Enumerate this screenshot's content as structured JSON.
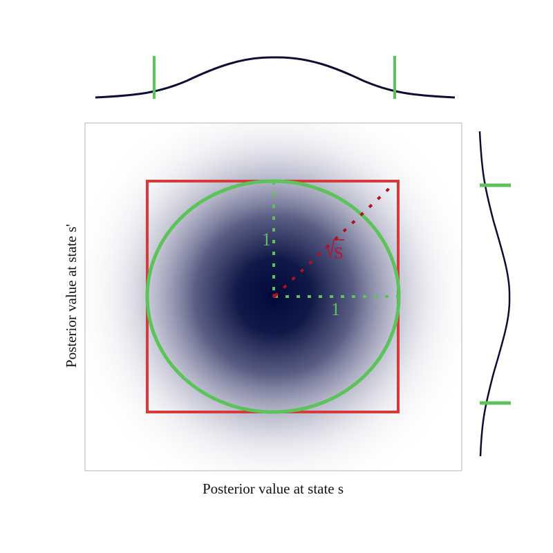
{
  "diagram": {
    "x_axis_label": "Posterior value at state s",
    "y_axis_label": "Posterior value at state s'",
    "unit_label_horizontal": "1",
    "unit_label_vertical": "1",
    "radius_label": "√S",
    "radius_symbol": "S",
    "colors": {
      "density_core": "#000a3a",
      "marginal_curve": "#0b0f33",
      "box": "#d63b3b",
      "circle": "#5cc35a",
      "unit_guides": "#5cc35a",
      "radius_guide": "#b01020",
      "radius_label": "#c0102a",
      "frame": "#b5b5b5"
    }
  }
}
